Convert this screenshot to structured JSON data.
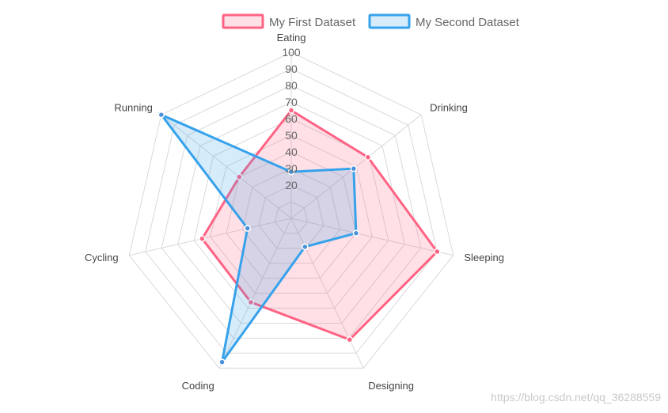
{
  "chart_data": {
    "type": "radar",
    "labels": [
      "Eating",
      "Drinking",
      "Sleeping",
      "Designing",
      "Coding",
      "Cycling",
      "Running"
    ],
    "series": [
      {
        "name": "My First Dataset",
        "values": [
          65,
          59,
          90,
          81,
          56,
          55,
          40
        ],
        "stroke": "#ff6384",
        "fill": "rgba(255,99,132,0.2)"
      },
      {
        "name": "My Second Dataset",
        "values": [
          28,
          48,
          40,
          19,
          96,
          27,
          100
        ],
        "stroke": "#36a2eb",
        "fill": "rgba(54,162,235,0.2)"
      }
    ],
    "r_range": [
      0,
      100
    ],
    "r_ticks": [
      20,
      30,
      40,
      50,
      60,
      70,
      80,
      90,
      100
    ],
    "grid": true,
    "legend_position": "top"
  },
  "watermark": "https://blog.csdn.net/qq_36288559",
  "colors": {
    "grid": "#d9d9d9",
    "first_point": "#ff6384",
    "second_point": "#4a90d9"
  }
}
